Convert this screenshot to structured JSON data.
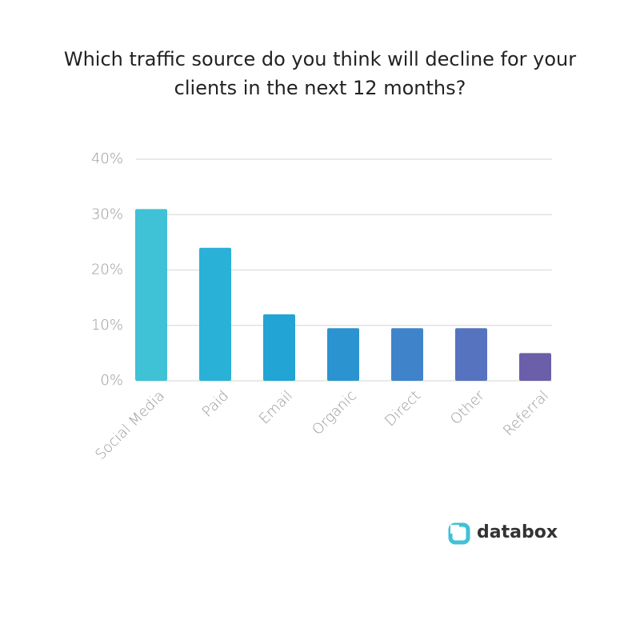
{
  "chart_data": {
    "type": "bar",
    "title": "Which traffic source do you think will decline for your clients in the next 12 months?",
    "categories": [
      "Social Media",
      "Paid",
      "Email",
      "Organic",
      "Direct",
      "Other",
      "Referral"
    ],
    "values": [
      31,
      24,
      12,
      9.5,
      9.5,
      9.5,
      5
    ],
    "colors": [
      "#3fc1d6",
      "#29b1d8",
      "#22a4d4",
      "#2b94d0",
      "#3f84cb",
      "#5573be",
      "#6a5fa8"
    ],
    "ylim": [
      0,
      40
    ],
    "yticks": [
      {
        "value": 0,
        "label": "0%"
      },
      {
        "value": 10,
        "label": "10%"
      },
      {
        "value": 20,
        "label": "20%"
      },
      {
        "value": 30,
        "label": "30%"
      },
      {
        "value": 40,
        "label": "40%"
      }
    ],
    "grid": true
  },
  "brand": "databox"
}
